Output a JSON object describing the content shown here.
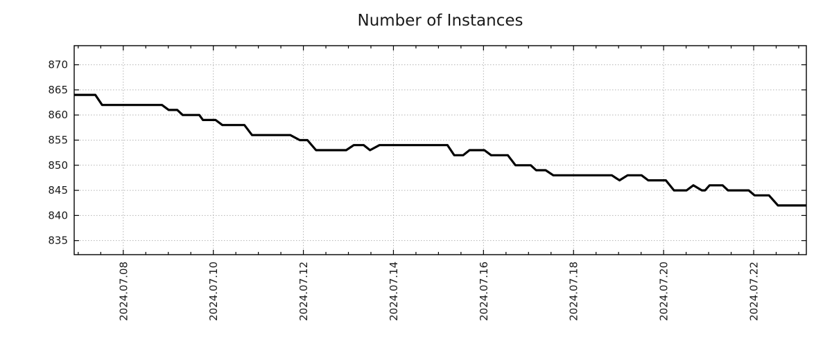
{
  "chart_data": {
    "type": "line",
    "title": "Number of Instances",
    "x_axis": {
      "unit": "days since 2024-07-07 00:00",
      "min": -0.09,
      "max": 16.17,
      "minor_tick_step": 0.5,
      "major_ticks": [
        {
          "pos": 1,
          "label": "2024.07.08"
        },
        {
          "pos": 3,
          "label": "2024.07.10"
        },
        {
          "pos": 5,
          "label": "2024.07.12"
        },
        {
          "pos": 7,
          "label": "2024.07.14"
        },
        {
          "pos": 9,
          "label": "2024.07.16"
        },
        {
          "pos": 11,
          "label": "2024.07.18"
        },
        {
          "pos": 13,
          "label": "2024.07.20"
        },
        {
          "pos": 15,
          "label": "2024.07.22"
        }
      ]
    },
    "y_axis": {
      "min": 832.2,
      "max": 873.8,
      "ticks": [
        835,
        840,
        845,
        850,
        855,
        860,
        865,
        870
      ]
    },
    "grid": {
      "show": true,
      "color": "#b3b3b3",
      "dash": "1.5 2.5"
    },
    "axis_color": "#000000",
    "series": [
      {
        "name": "Number of Instances",
        "color": "#000000",
        "width": 3.2,
        "points": [
          [
            -0.09,
            864
          ],
          [
            0.38,
            864
          ],
          [
            0.53,
            862
          ],
          [
            1.86,
            862
          ],
          [
            2.01,
            861
          ],
          [
            2.2,
            861
          ],
          [
            2.32,
            860
          ],
          [
            2.69,
            860
          ],
          [
            2.77,
            859
          ],
          [
            3.05,
            859
          ],
          [
            3.2,
            858
          ],
          [
            3.69,
            858
          ],
          [
            3.86,
            856
          ],
          [
            4.71,
            856
          ],
          [
            4.92,
            855
          ],
          [
            5.09,
            855
          ],
          [
            5.28,
            853
          ],
          [
            5.95,
            853
          ],
          [
            6.12,
            854
          ],
          [
            6.34,
            854
          ],
          [
            6.48,
            853
          ],
          [
            6.69,
            854
          ],
          [
            8.2,
            854
          ],
          [
            8.35,
            852
          ],
          [
            8.55,
            852
          ],
          [
            8.69,
            853
          ],
          [
            9.02,
            853
          ],
          [
            9.17,
            852
          ],
          [
            9.54,
            852
          ],
          [
            9.71,
            850
          ],
          [
            10.05,
            850
          ],
          [
            10.17,
            849
          ],
          [
            10.38,
            849
          ],
          [
            10.55,
            848
          ],
          [
            11.85,
            848
          ],
          [
            12.02,
            847
          ],
          [
            12.2,
            848
          ],
          [
            12.51,
            848
          ],
          [
            12.66,
            847
          ],
          [
            13.05,
            847
          ],
          [
            13.23,
            845
          ],
          [
            13.51,
            845
          ],
          [
            13.66,
            846
          ],
          [
            13.85,
            845
          ],
          [
            13.92,
            845
          ],
          [
            14.02,
            846
          ],
          [
            14.31,
            846
          ],
          [
            14.43,
            845
          ],
          [
            14.89,
            845
          ],
          [
            15.02,
            844
          ],
          [
            15.34,
            844
          ],
          [
            15.54,
            842
          ],
          [
            16.17,
            842
          ]
        ]
      }
    ]
  }
}
